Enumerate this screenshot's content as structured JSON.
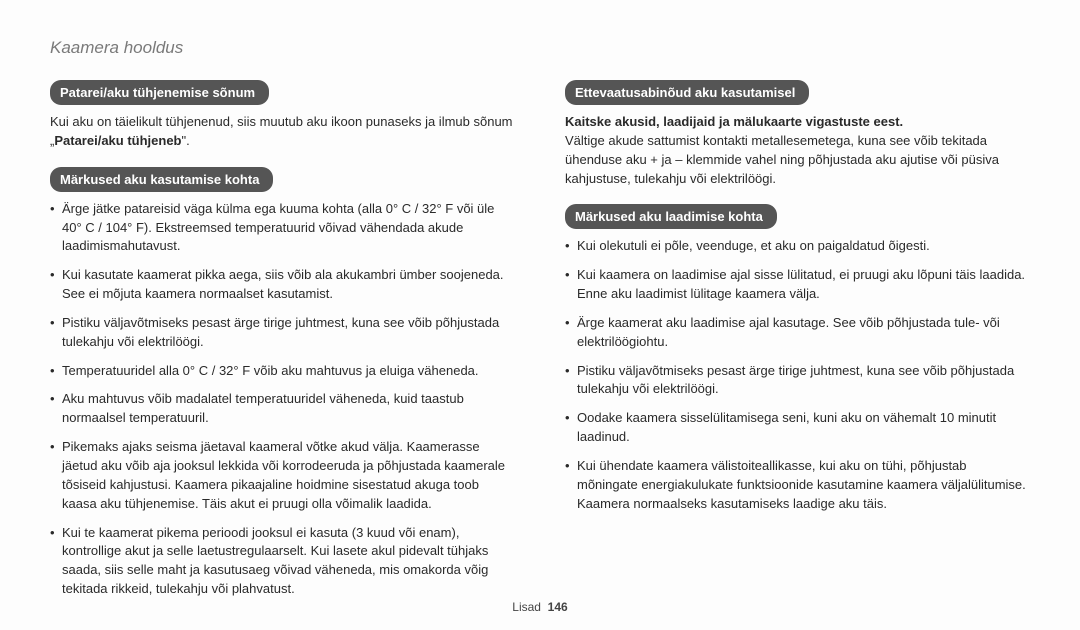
{
  "page_title": "Kaamera hooldus",
  "footer": {
    "label": "Lisad",
    "page": "146"
  },
  "left": {
    "section1": {
      "heading": "Patarei/aku tühjenemise sõnum",
      "text_before": "Kui aku on täielikult tühjenenud, siis muutub aku ikoon punaseks ja ilmub sõnum „",
      "text_bold": "Patarei/aku tühjeneb",
      "text_after": "\"."
    },
    "section2": {
      "heading": "Märkused aku kasutamise kohta",
      "items": [
        "Ärge jätke patareisid väga külma ega kuuma kohta (alla 0° C / 32° F või üle 40° C / 104° F). Ekstreemsed temperatuurid võivad vähendada akude laadimismahutavust.",
        "Kui kasutate kaamerat pikka aega, siis võib ala akukambri ümber soojeneda. See ei mõjuta kaamera normaalset kasutamist.",
        "Pistiku väljavõtmiseks pesast ärge tirige juhtmest, kuna see võib põhjustada tulekahju või elektrilöögi.",
        "Temperatuuridel alla 0° C / 32° F võib aku mahtuvus ja eluiga väheneda.",
        "Aku mahtuvus võib madalatel temperatuuridel väheneda, kuid taastub normaalsel temperatuuril.",
        "Pikemaks ajaks seisma jäetaval kaameral võtke akud välja. Kaamerasse jäetud aku võib aja jooksul lekkida või korrodeeruda ja põhjustada kaamerale tõsiseid kahjustusi. Kaamera pikaajaline hoidmine sisestatud akuga toob kaasa aku tühjenemise. Täis akut ei pruugi olla võimalik laadida.",
        "Kui te kaamerat pikema perioodi jooksul ei kasuta (3 kuud või enam), kontrollige akut ja selle laetustregulaarselt. Kui lasete akul pidevalt tühjaks saada, siis selle maht ja kasutusaeg võivad väheneda, mis omakorda võig tekitada rikkeid, tulekahju või plahvatust."
      ]
    }
  },
  "right": {
    "section1": {
      "heading": "Ettevaatusabinõud aku kasutamisel",
      "subhead": "Kaitske akusid, laadijaid ja mälukaarte vigastuste eest.",
      "text": "Vältige akude sattumist kontakti metallesemetega, kuna see võib tekitada ühenduse aku + ja – klemmide vahel ning põhjustada aku ajutise või püsiva kahjustuse, tulekahju või elektrilöögi."
    },
    "section2": {
      "heading": "Märkused aku laadimise kohta",
      "items": [
        "Kui olekutuli ei põle, veenduge, et aku on paigaldatud õigesti.",
        "Kui kaamera on laadimise ajal sisse lülitatud, ei pruugi aku lõpuni täis laadida. Enne aku laadimist lülitage kaamera välja.",
        "Ärge kaamerat aku laadimise ajal kasutage. See võib põhjustada tule- või elektrilöögiohtu.",
        "Pistiku väljavõtmiseks pesast ärge tirige juhtmest, kuna see võib põhjustada tulekahju või elektrilöögi.",
        "Oodake kaamera sisselülitamisega seni, kuni aku on vähemalt 10 minutit laadinud.",
        "Kui ühendate kaamera välistoiteallikasse, kui aku on tühi, põhjustab mõningate energiakulukate funktsioonide kasutamine kaamera väljalülitumise. Kaamera normaalseks kasutamiseks laadige aku täis."
      ]
    }
  }
}
